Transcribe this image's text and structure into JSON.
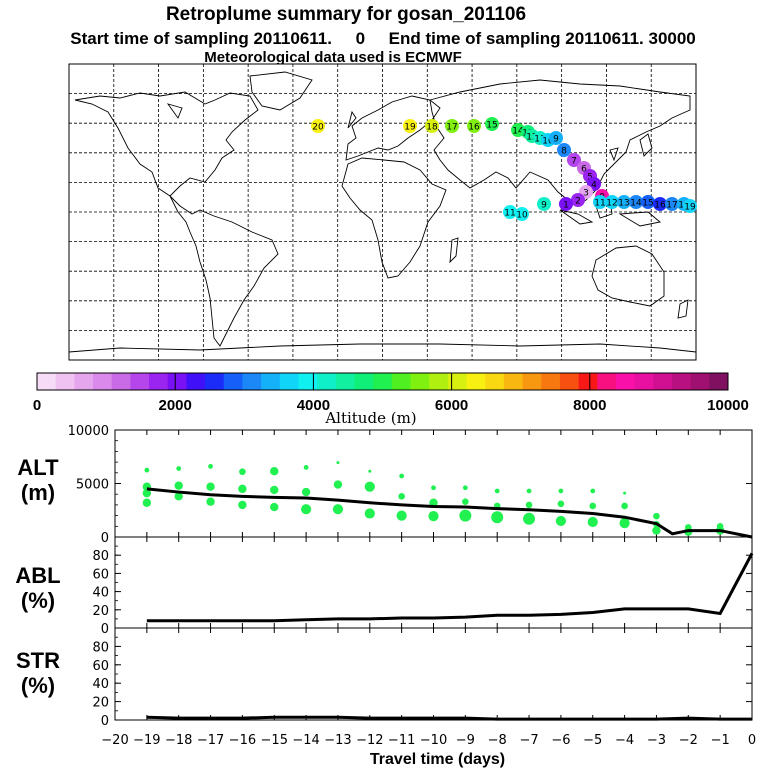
{
  "header": {
    "title": "Retroplume summary for gosan_201106",
    "sampling_line": "Start time of sampling 20110611.     0     End time of sampling 20110611. 30000",
    "met_line": "Meteorological data used is ECMWF"
  },
  "colorbar": {
    "label": "Altitude  (m)",
    "min": 0,
    "max": 10000,
    "tick_labels": [
      "0",
      "2000",
      "4000",
      "6000",
      "8000",
      "10000"
    ],
    "colors": [
      "#f6dcf6",
      "#efc2f2",
      "#e6a6ee",
      "#d98aea",
      "#c96ae6",
      "#b446ec",
      "#9a24f0",
      "#7a10f4",
      "#4010f8",
      "#1c2cf8",
      "#1460f8",
      "#1c88f8",
      "#14b0f8",
      "#10d4f8",
      "#10f0f0",
      "#10f0c8",
      "#10f0a0",
      "#10f078",
      "#20f050",
      "#50f020",
      "#80f010",
      "#b0f010",
      "#d8f010",
      "#f8f010",
      "#f8d810",
      "#f8b810",
      "#f89810",
      "#f87810",
      "#f85010",
      "#f81818",
      "#f81080",
      "#f810a8",
      "#e810a0",
      "#d01090",
      "#b81080",
      "#a01070",
      "#801060"
    ]
  },
  "map": {
    "markers": [
      {
        "label": "20",
        "color": "#f8f010"
      },
      {
        "label": "19",
        "color": "#f8f010"
      },
      {
        "label": "18",
        "color": "#d8f010"
      },
      {
        "label": "17",
        "color": "#80f010"
      },
      {
        "label": "16",
        "color": "#80f010"
      },
      {
        "label": "15",
        "color": "#20f050"
      },
      {
        "label": "14",
        "color": "#20f050"
      },
      {
        "label": "13",
        "color": "#10f078"
      },
      {
        "label": "12",
        "color": "#10f0a0"
      },
      {
        "label": "11",
        "color": "#10f0c8"
      },
      {
        "label": "10",
        "color": "#10d4f8"
      },
      {
        "label": "9",
        "color": "#14b0f8"
      },
      {
        "label": "8",
        "color": "#1c88f8"
      },
      {
        "label": "7",
        "color": "#b446ec"
      },
      {
        "label": "6",
        "color": "#c96ae6"
      },
      {
        "label": "5",
        "color": "#9a24f0"
      },
      {
        "label": "4",
        "color": "#7a10f4"
      },
      {
        "label": "3",
        "color": "#e6a6ee"
      },
      {
        "label": "2",
        "color": "#9a24f0"
      },
      {
        "label": "1",
        "color": "#7a10f4"
      },
      {
        "label": "0",
        "color": "#f810a8"
      },
      {
        "label": "11",
        "color": "#10d4f8"
      },
      {
        "label": "12",
        "color": "#10d4f8"
      },
      {
        "label": "13",
        "color": "#14b0f8"
      },
      {
        "label": "14",
        "color": "#1c88f8"
      },
      {
        "label": "15",
        "color": "#1460f8"
      },
      {
        "label": "16",
        "color": "#1c2cf8"
      },
      {
        "label": "17",
        "color": "#1c88f8"
      },
      {
        "label": "18",
        "color": "#14b0f8"
      },
      {
        "label": "19",
        "color": "#10d4f8"
      },
      {
        "label": "11",
        "color": "#10f0f0"
      },
      {
        "label": "10",
        "color": "#10f0f0"
      },
      {
        "label": "9",
        "color": "#10f0c8"
      }
    ]
  },
  "chart_data": [
    {
      "type": "scatter",
      "ylabel": "ALT (m)",
      "ylabel_top": "ALT",
      "ylabel_unit": "(m)",
      "ylim": [
        0,
        10000
      ],
      "yticks": [
        "10000",
        "5000",
        "0"
      ],
      "line": {
        "x": [
          -19,
          -18,
          -17,
          -16,
          -15,
          -14,
          -13,
          -12,
          -11,
          -10,
          -9,
          -8,
          -7,
          -6,
          -5,
          -4,
          -3,
          -2.5,
          -2,
          -1,
          0
        ],
        "y": [
          4500,
          4200,
          3950,
          3800,
          3700,
          3650,
          3450,
          3200,
          3000,
          2850,
          2800,
          2650,
          2550,
          2400,
          2200,
          1850,
          1250,
          300,
          600,
          600,
          0
        ]
      },
      "points": [
        {
          "x": -19,
          "y": 6250,
          "s": 2
        },
        {
          "x": -19,
          "y": 4700,
          "s": 4
        },
        {
          "x": -19,
          "y": 4100,
          "s": 4
        },
        {
          "x": -19,
          "y": 3200,
          "s": 4
        },
        {
          "x": -18,
          "y": 6400,
          "s": 2
        },
        {
          "x": -18,
          "y": 4800,
          "s": 4
        },
        {
          "x": -18,
          "y": 3800,
          "s": 4
        },
        {
          "x": -17,
          "y": 6600,
          "s": 2
        },
        {
          "x": -17,
          "y": 4700,
          "s": 4
        },
        {
          "x": -17,
          "y": 3300,
          "s": 4
        },
        {
          "x": -16,
          "y": 6100,
          "s": 3
        },
        {
          "x": -16,
          "y": 4500,
          "s": 4
        },
        {
          "x": -16,
          "y": 3000,
          "s": 4
        },
        {
          "x": -15,
          "y": 6150,
          "s": 4
        },
        {
          "x": -15,
          "y": 4400,
          "s": 4
        },
        {
          "x": -15,
          "y": 2800,
          "s": 4
        },
        {
          "x": -14,
          "y": 6500,
          "s": 2
        },
        {
          "x": -14,
          "y": 4200,
          "s": 4
        },
        {
          "x": -14,
          "y": 2600,
          "s": 5
        },
        {
          "x": -13,
          "y": 6950,
          "s": 1
        },
        {
          "x": -13,
          "y": 4900,
          "s": 4
        },
        {
          "x": -13,
          "y": 2600,
          "s": 5
        },
        {
          "x": -12,
          "y": 6150,
          "s": 1
        },
        {
          "x": -12,
          "y": 4700,
          "s": 5
        },
        {
          "x": -12,
          "y": 2200,
          "s": 5
        },
        {
          "x": -11,
          "y": 5700,
          "s": 2
        },
        {
          "x": -11,
          "y": 3800,
          "s": 3
        },
        {
          "x": -11,
          "y": 2000,
          "s": 5
        },
        {
          "x": -10,
          "y": 4600,
          "s": 2
        },
        {
          "x": -10,
          "y": 3200,
          "s": 4
        },
        {
          "x": -10,
          "y": 1950,
          "s": 5
        },
        {
          "x": -9,
          "y": 4600,
          "s": 2
        },
        {
          "x": -9,
          "y": 3300,
          "s": 3
        },
        {
          "x": -9,
          "y": 2000,
          "s": 6
        },
        {
          "x": -8,
          "y": 4300,
          "s": 2
        },
        {
          "x": -8,
          "y": 2900,
          "s": 3
        },
        {
          "x": -8,
          "y": 1850,
          "s": 6
        },
        {
          "x": -7,
          "y": 4300,
          "s": 2
        },
        {
          "x": -7,
          "y": 3000,
          "s": 3
        },
        {
          "x": -7,
          "y": 1700,
          "s": 6
        },
        {
          "x": -6,
          "y": 4300,
          "s": 2
        },
        {
          "x": -6,
          "y": 3100,
          "s": 3
        },
        {
          "x": -6,
          "y": 1500,
          "s": 5
        },
        {
          "x": -5,
          "y": 4300,
          "s": 2
        },
        {
          "x": -5,
          "y": 2900,
          "s": 3
        },
        {
          "x": -5,
          "y": 1400,
          "s": 5
        },
        {
          "x": -4,
          "y": 4100,
          "s": 1
        },
        {
          "x": -4,
          "y": 2900,
          "s": 3
        },
        {
          "x": -4,
          "y": 1300,
          "s": 5
        },
        {
          "x": -3,
          "y": 1950,
          "s": 3
        },
        {
          "x": -3,
          "y": 1200,
          "s": 3
        },
        {
          "x": -3,
          "y": 600,
          "s": 4
        },
        {
          "x": -2,
          "y": 900,
          "s": 3
        },
        {
          "x": -2,
          "y": 500,
          "s": 4
        },
        {
          "x": -1,
          "y": 1000,
          "s": 3
        },
        {
          "x": -1,
          "y": 600,
          "s": 4
        }
      ]
    },
    {
      "type": "line",
      "ylabel": "ABL (%)",
      "ylabel_top": "ABL",
      "ylabel_unit": "(%)",
      "ylim": [
        0,
        100
      ],
      "yticks": [
        "80",
        "60",
        "40",
        "20",
        "0"
      ],
      "x": [
        -19,
        -18,
        -17,
        -16,
        -15,
        -14,
        -13,
        -12,
        -11,
        -10,
        -9,
        -8,
        -7,
        -6,
        -5,
        -4,
        -3,
        -2,
        -1,
        0
      ],
      "values": [
        8,
        8,
        8,
        8,
        8,
        9,
        10,
        10,
        11,
        11,
        12,
        14,
        14,
        15,
        17,
        21,
        21,
        21,
        16,
        82
      ]
    },
    {
      "type": "line",
      "ylabel": "STR (%)",
      "ylabel_top": "STR",
      "ylabel_unit": "(%)",
      "ylim": [
        0,
        100
      ],
      "yticks": [
        "80",
        "60",
        "40",
        "20",
        "0"
      ],
      "x": [
        -19,
        -18,
        -17,
        -16,
        -15,
        -14,
        -13,
        -12,
        -11,
        -10,
        -9,
        -8,
        -7,
        -6,
        -5,
        -4,
        -3,
        -2,
        -1,
        0
      ],
      "values": [
        3,
        2,
        2,
        2,
        3,
        3,
        3,
        2,
        2,
        2,
        2,
        1,
        1,
        1,
        1,
        1,
        1,
        2,
        1,
        1
      ],
      "xlabel": "Travel time (days)",
      "xticks": [
        "−20",
        "−19",
        "−18",
        "−17",
        "−16",
        "−15",
        "−14",
        "−13",
        "−12",
        "−11",
        "−10",
        "−9",
        "−8",
        "−7",
        "−6",
        "−5",
        "−4",
        "−3",
        "−2",
        "−1",
        "0"
      ]
    }
  ]
}
